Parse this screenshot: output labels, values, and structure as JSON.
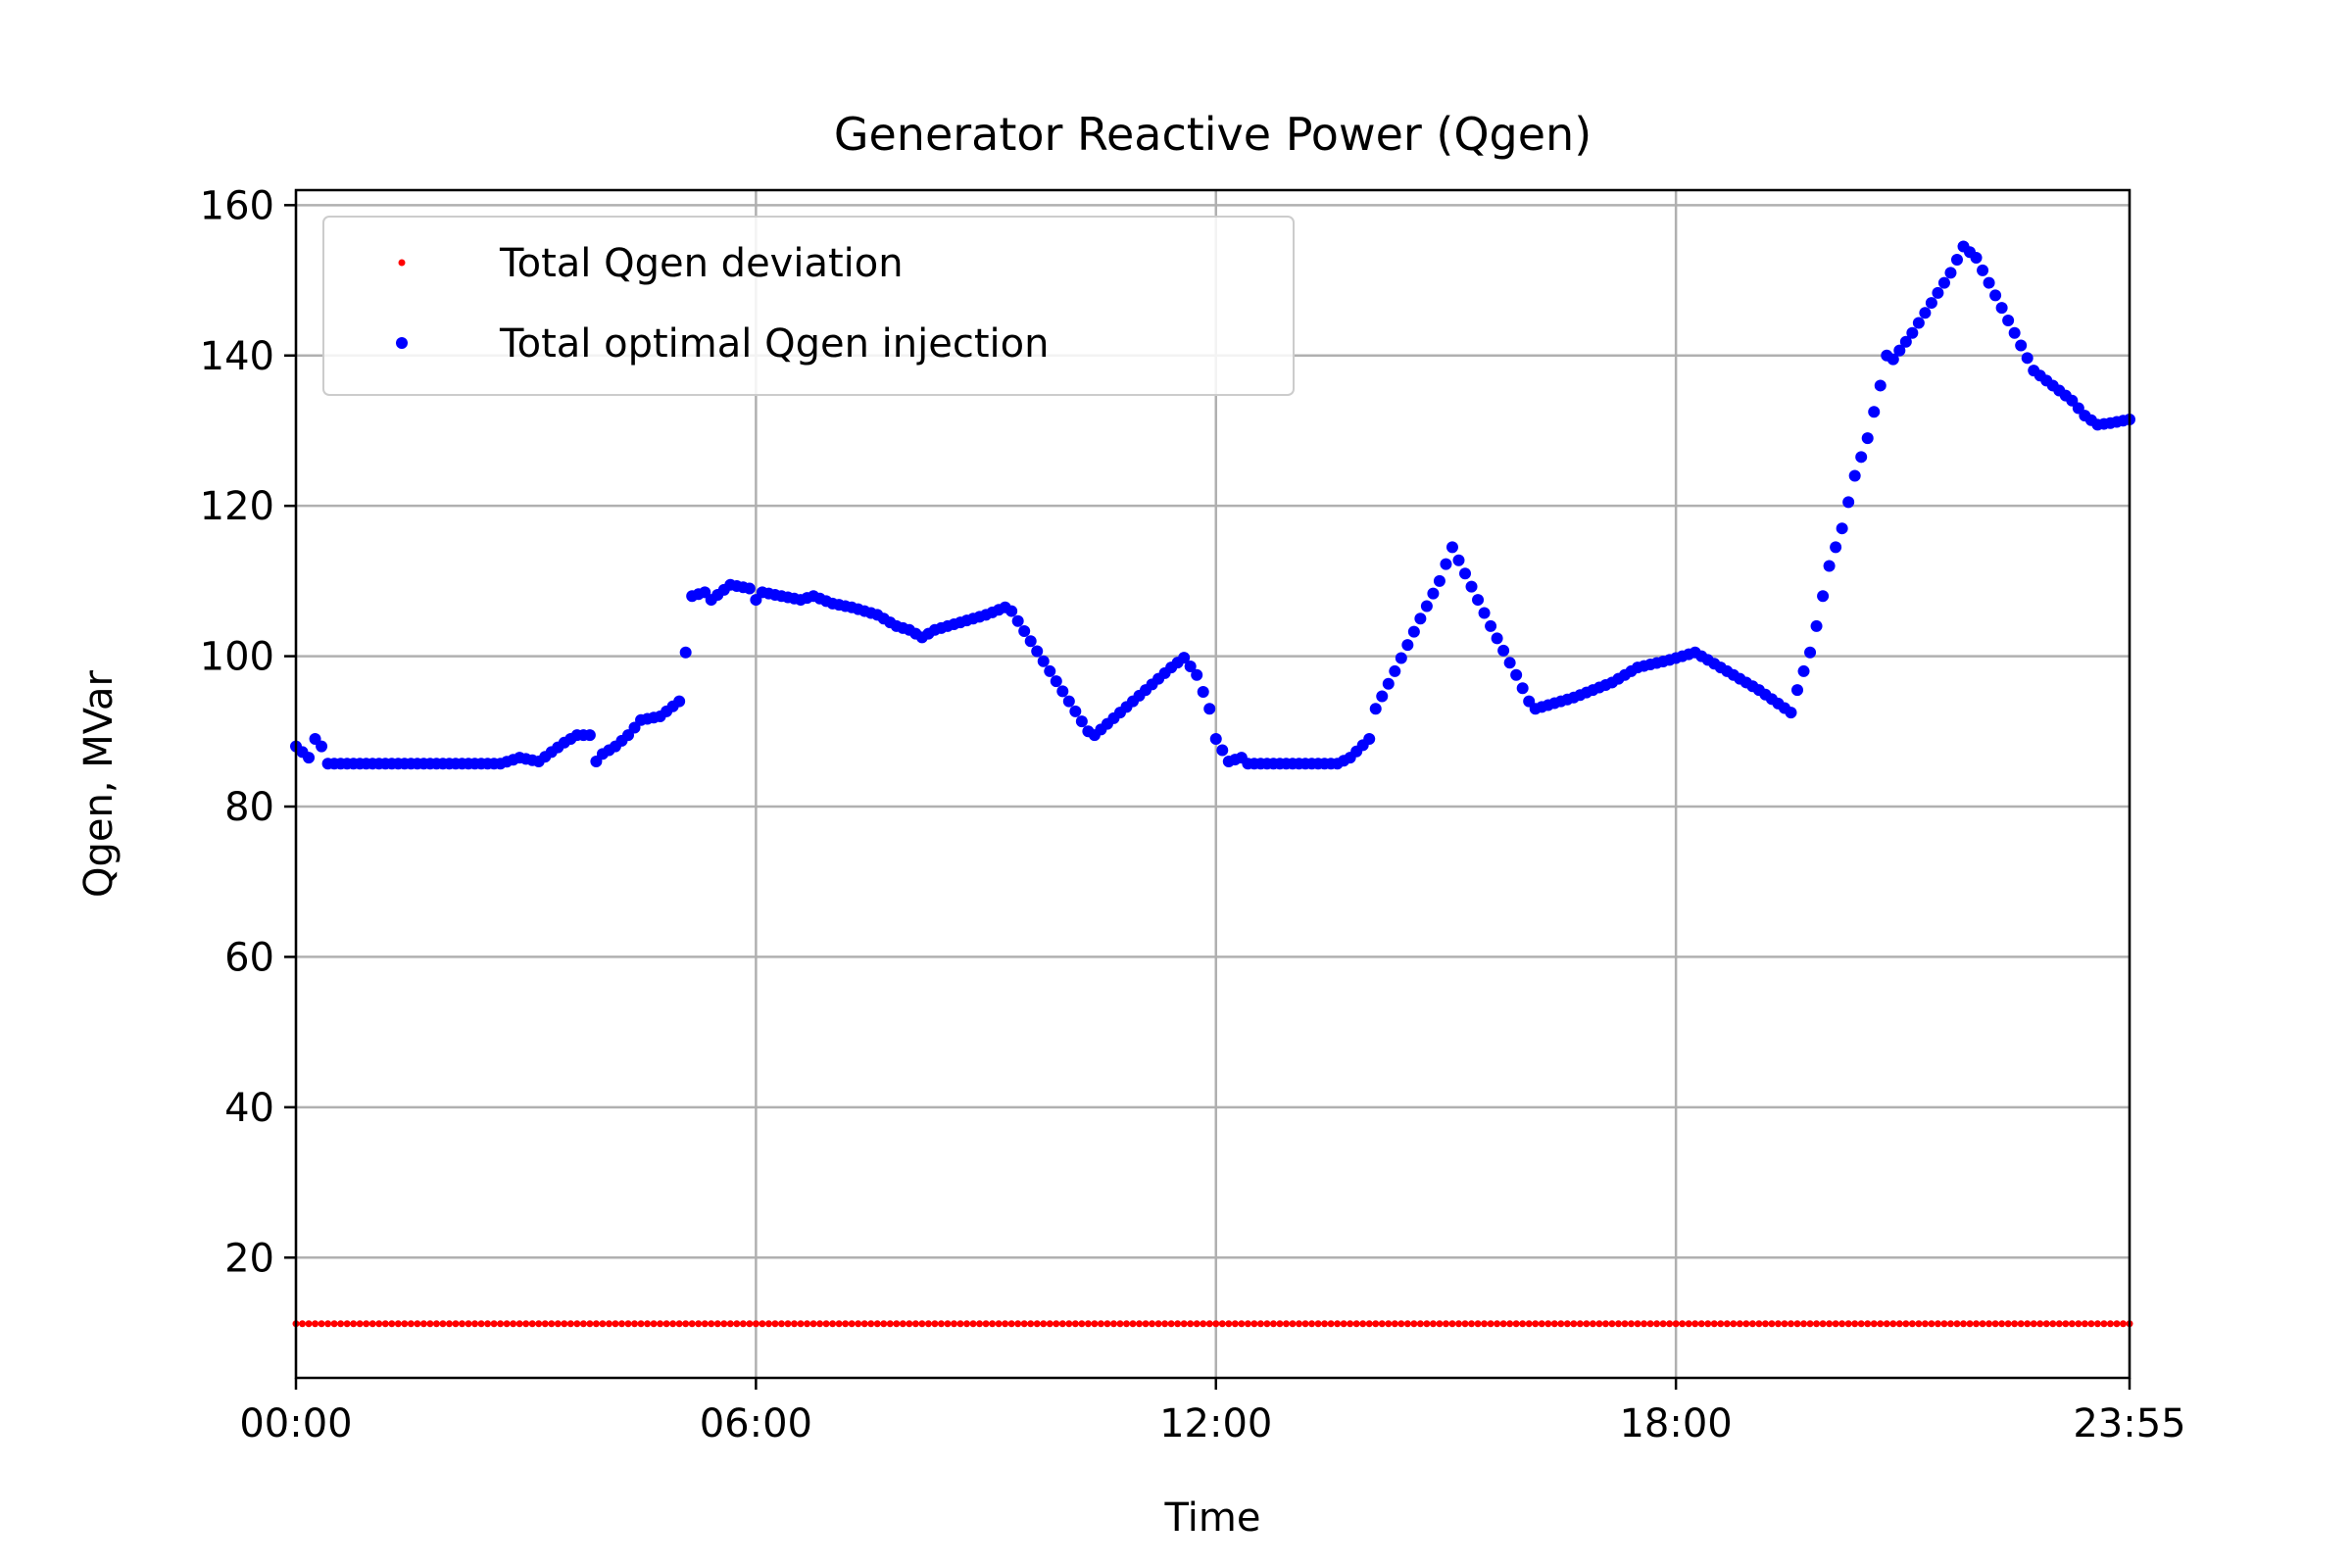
{
  "chart_data": {
    "type": "scatter",
    "title": "Generator Reactive Power (Qgen)",
    "xlabel": "Time",
    "ylabel": "Qgen, MVar",
    "xlim": [
      "00:00",
      "23:55"
    ],
    "ylim": [
      4,
      162
    ],
    "x_ticks": [
      "00:00",
      "06:00",
      "12:00",
      "18:00",
      "23:55"
    ],
    "y_ticks": [
      20,
      40,
      60,
      80,
      100,
      120,
      140,
      160
    ],
    "grid": true,
    "legend_position": "upper-left",
    "sample_interval_minutes": 5,
    "series": [
      {
        "name": "Total Qgen deviation",
        "color": "#ff0000",
        "marker": "small-dot",
        "constant_value": 11.2,
        "x_start": "00:00",
        "x_end": "23:55"
      },
      {
        "name": "Total optimal Qgen injection",
        "color": "#0000ff",
        "marker": "dot",
        "points": [
          [
            "00:00",
            88.0
          ],
          [
            "00:10",
            86.5
          ],
          [
            "00:15",
            89.0
          ],
          [
            "00:20",
            88.0
          ],
          [
            "00:25",
            85.7
          ],
          [
            "02:40",
            85.7
          ],
          [
            "02:55",
            86.5
          ],
          [
            "03:10",
            86.0
          ],
          [
            "03:30",
            88.5
          ],
          [
            "03:40",
            89.5
          ],
          [
            "03:50",
            89.5
          ],
          [
            "03:55",
            86.0
          ],
          [
            "04:00",
            87.0
          ],
          [
            "04:10",
            88.0
          ],
          [
            "04:20",
            89.5
          ],
          [
            "04:30",
            91.5
          ],
          [
            "04:45",
            92.0
          ],
          [
            "05:00",
            94.0
          ],
          [
            "05:05",
            100.5
          ],
          [
            "05:10",
            108.0
          ],
          [
            "05:20",
            108.5
          ],
          [
            "05:25",
            107.5
          ],
          [
            "05:40",
            109.5
          ],
          [
            "05:55",
            109.0
          ],
          [
            "06:00",
            107.5
          ],
          [
            "06:05",
            108.5
          ],
          [
            "06:35",
            107.5
          ],
          [
            "06:45",
            108.0
          ],
          [
            "07:00",
            107.0
          ],
          [
            "07:15",
            106.5
          ],
          [
            "07:35",
            105.5
          ],
          [
            "07:50",
            104.0
          ],
          [
            "08:00",
            103.5
          ],
          [
            "08:10",
            102.5
          ],
          [
            "08:20",
            103.5
          ],
          [
            "08:40",
            104.5
          ],
          [
            "09:00",
            105.5
          ],
          [
            "09:15",
            106.5
          ],
          [
            "09:20",
            106.0
          ],
          [
            "09:35",
            102.0
          ],
          [
            "09:50",
            98.0
          ],
          [
            "10:05",
            94.0
          ],
          [
            "10:20",
            90.0
          ],
          [
            "10:25",
            89.5
          ],
          [
            "10:45",
            92.5
          ],
          [
            "11:05",
            95.5
          ],
          [
            "11:25",
            98.5
          ],
          [
            "11:35",
            99.8
          ],
          [
            "11:45",
            97.5
          ],
          [
            "11:55",
            93.0
          ],
          [
            "12:00",
            89.0
          ],
          [
            "12:10",
            86.0
          ],
          [
            "12:20",
            86.5
          ],
          [
            "12:25",
            85.7
          ],
          [
            "13:35",
            85.7
          ],
          [
            "13:45",
            86.5
          ],
          [
            "14:00",
            89.0
          ],
          [
            "14:05",
            93.0
          ],
          [
            "14:20",
            98.0
          ],
          [
            "14:40",
            105.0
          ],
          [
            "14:55",
            110.0
          ],
          [
            "15:05",
            114.5
          ],
          [
            "15:15",
            111.0
          ],
          [
            "15:35",
            104.0
          ],
          [
            "15:55",
            97.5
          ],
          [
            "16:05",
            94.0
          ],
          [
            "16:10",
            93.0
          ],
          [
            "16:40",
            94.5
          ],
          [
            "17:10",
            96.5
          ],
          [
            "17:30",
            98.5
          ],
          [
            "17:55",
            99.5
          ],
          [
            "18:15",
            100.5
          ],
          [
            "18:40",
            98.0
          ],
          [
            "19:05",
            95.5
          ],
          [
            "19:30",
            92.5
          ],
          [
            "19:35",
            95.5
          ],
          [
            "19:45",
            100.5
          ],
          [
            "19:50",
            104.0
          ],
          [
            "19:55",
            108.0
          ],
          [
            "20:00",
            112.0
          ],
          [
            "20:10",
            117.0
          ],
          [
            "20:20",
            124.0
          ],
          [
            "20:30",
            129.0
          ],
          [
            "20:40",
            136.0
          ],
          [
            "20:45",
            140.0
          ],
          [
            "20:50",
            139.5
          ],
          [
            "21:05",
            143.0
          ],
          [
            "21:20",
            147.0
          ],
          [
            "21:35",
            151.0
          ],
          [
            "21:45",
            154.5
          ],
          [
            "21:55",
            153.0
          ],
          [
            "22:10",
            148.0
          ],
          [
            "22:25",
            143.0
          ],
          [
            "22:40",
            138.0
          ],
          [
            "22:55",
            136.0
          ],
          [
            "23:10",
            134.0
          ],
          [
            "23:20",
            132.0
          ],
          [
            "23:30",
            130.8
          ],
          [
            "23:40",
            131.0
          ],
          [
            "23:55",
            131.5
          ]
        ]
      }
    ]
  }
}
